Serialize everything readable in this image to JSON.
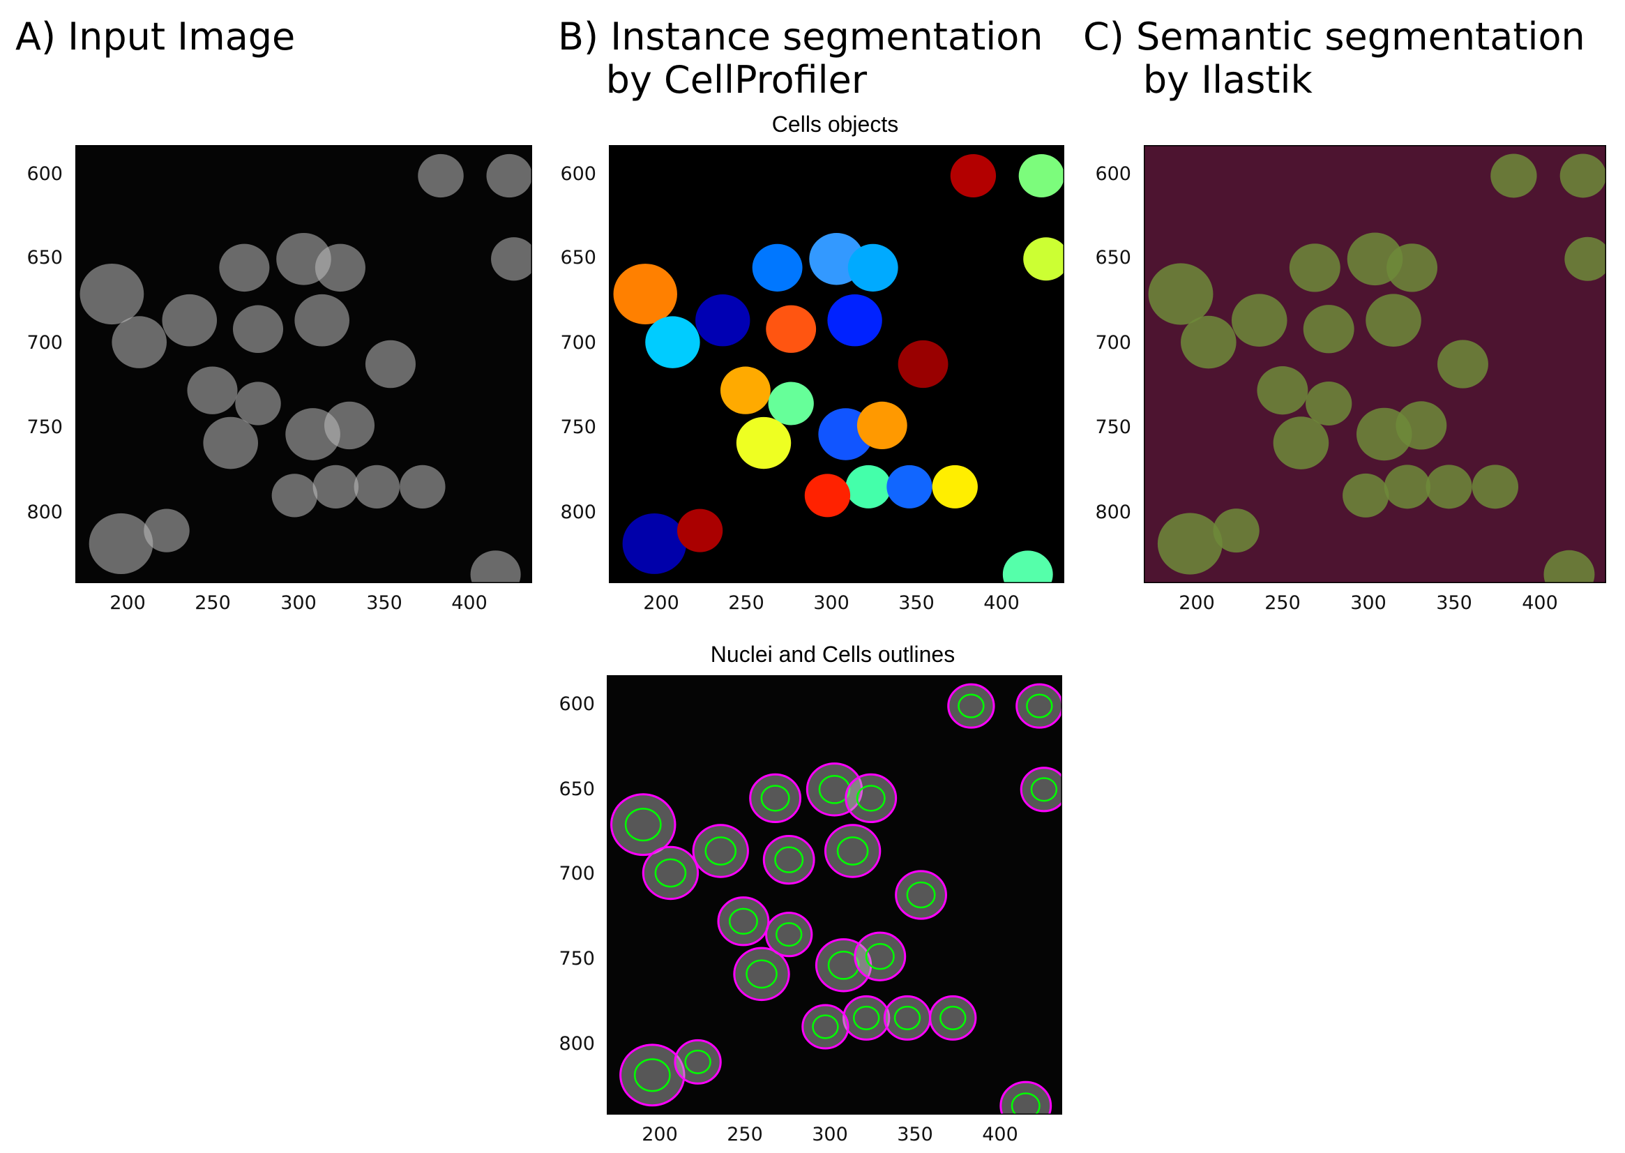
{
  "figure": {
    "panel_a_title": "A) Input Image",
    "panel_b_title": "B) Instance segmentation\n    by CellProfiler",
    "panel_c_title": "C) Semantic segmentation\n     by Ilastik",
    "plot_b1_title": "Cells objects",
    "plot_b2_title": "Nuclei and Cells outlines"
  },
  "axes": {
    "x_ticks": [
      "200",
      "250",
      "300",
      "350",
      "400"
    ],
    "y_ticks": [
      "600",
      "650",
      "700",
      "750",
      "800"
    ]
  },
  "colors": {
    "background": "#000000",
    "cell_gray": "#bdbdbd",
    "outline_cell": "#ff00ff",
    "outline_nucleus": "#00ff00",
    "ilastik_background": "#4d1430",
    "ilastik_foreground": "#6f8a3a"
  }
}
